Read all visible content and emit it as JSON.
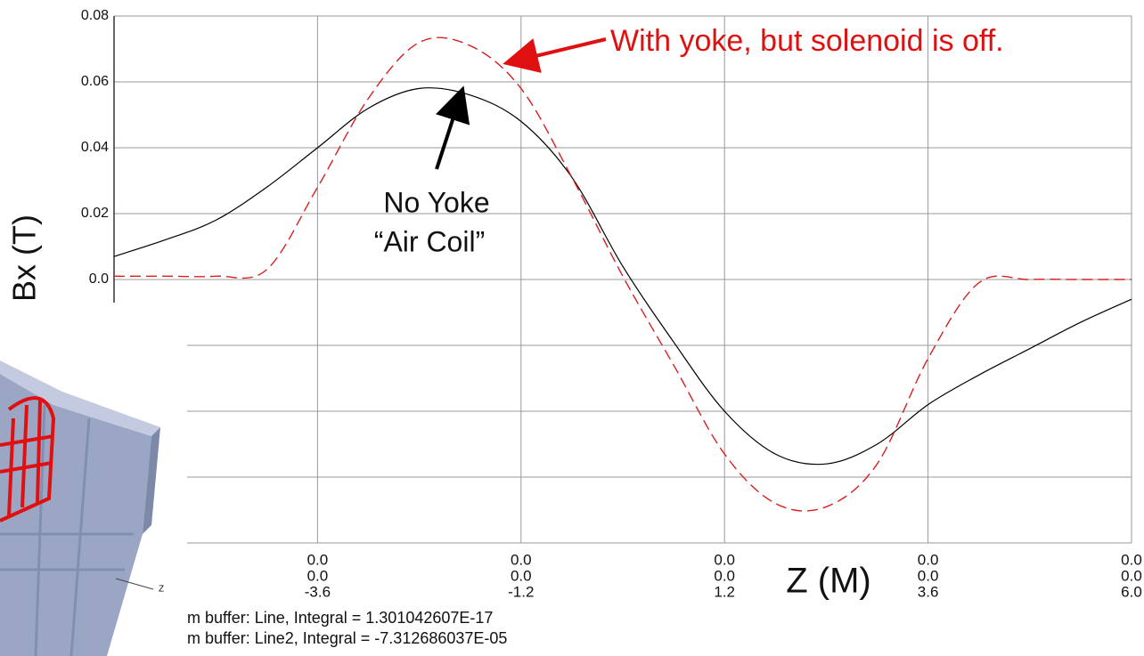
{
  "chart_data": {
    "type": "line",
    "y_axis_label": "Bx (T)",
    "x_axis_label": "Z (M)",
    "x": [
      -6,
      -5.4,
      -4.8,
      -4.2,
      -3.6,
      -3.0,
      -2.4,
      -1.8,
      -1.2,
      -0.6,
      0,
      0.6,
      1.2,
      1.8,
      2.4,
      3.0,
      3.6,
      4.2,
      4.8,
      5.4,
      6.0
    ],
    "series": [
      {
        "color": "#000000",
        "dash": false,
        "values": [
          0.007,
          0.012,
          0.018,
          0.028,
          0.04,
          0.052,
          0.058,
          0.056,
          0.048,
          0.031,
          0.004,
          -0.019,
          -0.04,
          -0.053,
          -0.056,
          -0.05,
          -0.038,
          -0.029,
          -0.021,
          -0.013,
          -0.006
        ]
      },
      {
        "color": "#d62020",
        "dash": true,
        "values": [
          0.001,
          0.001,
          0.001,
          0.003,
          0.028,
          0.055,
          0.072,
          0.071,
          0.058,
          0.031,
          0.001,
          -0.026,
          -0.053,
          -0.068,
          -0.069,
          -0.056,
          -0.024,
          -0.001,
          0.0,
          0.0,
          0.0
        ]
      }
    ],
    "xlim": [
      -6,
      6
    ],
    "ylim": [
      -0.08,
      0.08
    ],
    "xticks": [
      -3.6,
      -1.2,
      1.2,
      3.6,
      {
        "value": 6,
        "label": "6.0"
      }
    ],
    "x_tick_coords": [
      [
        "0.0",
        "0.0"
      ],
      [
        "0.0",
        "0.0"
      ],
      [
        "0.0",
        "0.0"
      ],
      [
        "0.0",
        "0.0"
      ],
      [
        "0.0",
        "0.0"
      ]
    ],
    "yticks": [
      0.08,
      0.06,
      0.04,
      0.02,
      {
        "value": 0,
        "label": "0.0"
      },
      {
        "value": -0.02,
        "label": null
      },
      {
        "value": -0.04,
        "label": null
      },
      {
        "value": -0.06,
        "label": null
      },
      {
        "value": -0.08,
        "label": null
      }
    ],
    "grid": true,
    "annotations": {
      "yoke": "With yoke, but solenoid is off.",
      "no_yoke": "No Yoke",
      "air_coil": "“Air Coil”"
    },
    "footer": [
      "m buffer: Line, Integral = 1.301042607E-17",
      "m buffer: Line2, Integral = -7.312686037E-05"
    ]
  },
  "overlay": {
    "axis_label": "Z"
  }
}
